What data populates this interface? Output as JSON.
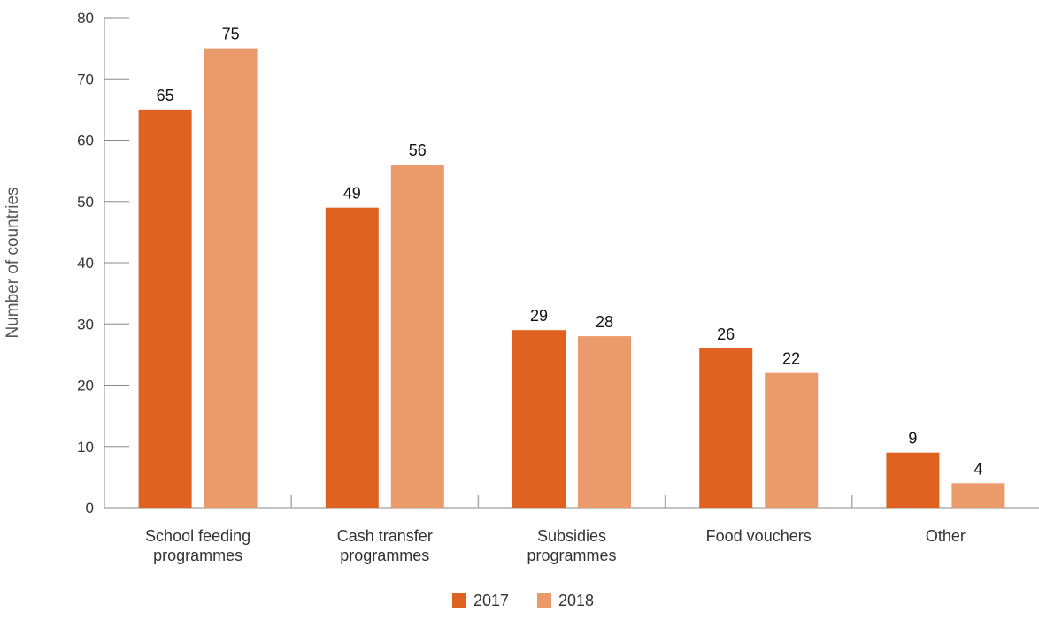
{
  "chart_data": {
    "type": "bar",
    "title": "",
    "xlabel": "",
    "ylabel": "Number of countries",
    "ylim": [
      0,
      80
    ],
    "yticks": [
      0,
      10,
      20,
      30,
      40,
      50,
      60,
      70,
      80
    ],
    "grid": false,
    "legend_position": "bottom-center",
    "categories": [
      [
        "School feeding",
        "programmes"
      ],
      [
        "Cash transfer",
        "programmes"
      ],
      [
        "Subsidies",
        "programmes"
      ],
      [
        "Food vouchers"
      ],
      [
        "Other"
      ]
    ],
    "series": [
      {
        "name": "2017",
        "color": "#DF6220",
        "values": [
          65,
          49,
          29,
          26,
          9
        ]
      },
      {
        "name": "2018",
        "color": "#EB9B6B",
        "values": [
          75,
          56,
          28,
          22,
          4
        ]
      }
    ]
  }
}
